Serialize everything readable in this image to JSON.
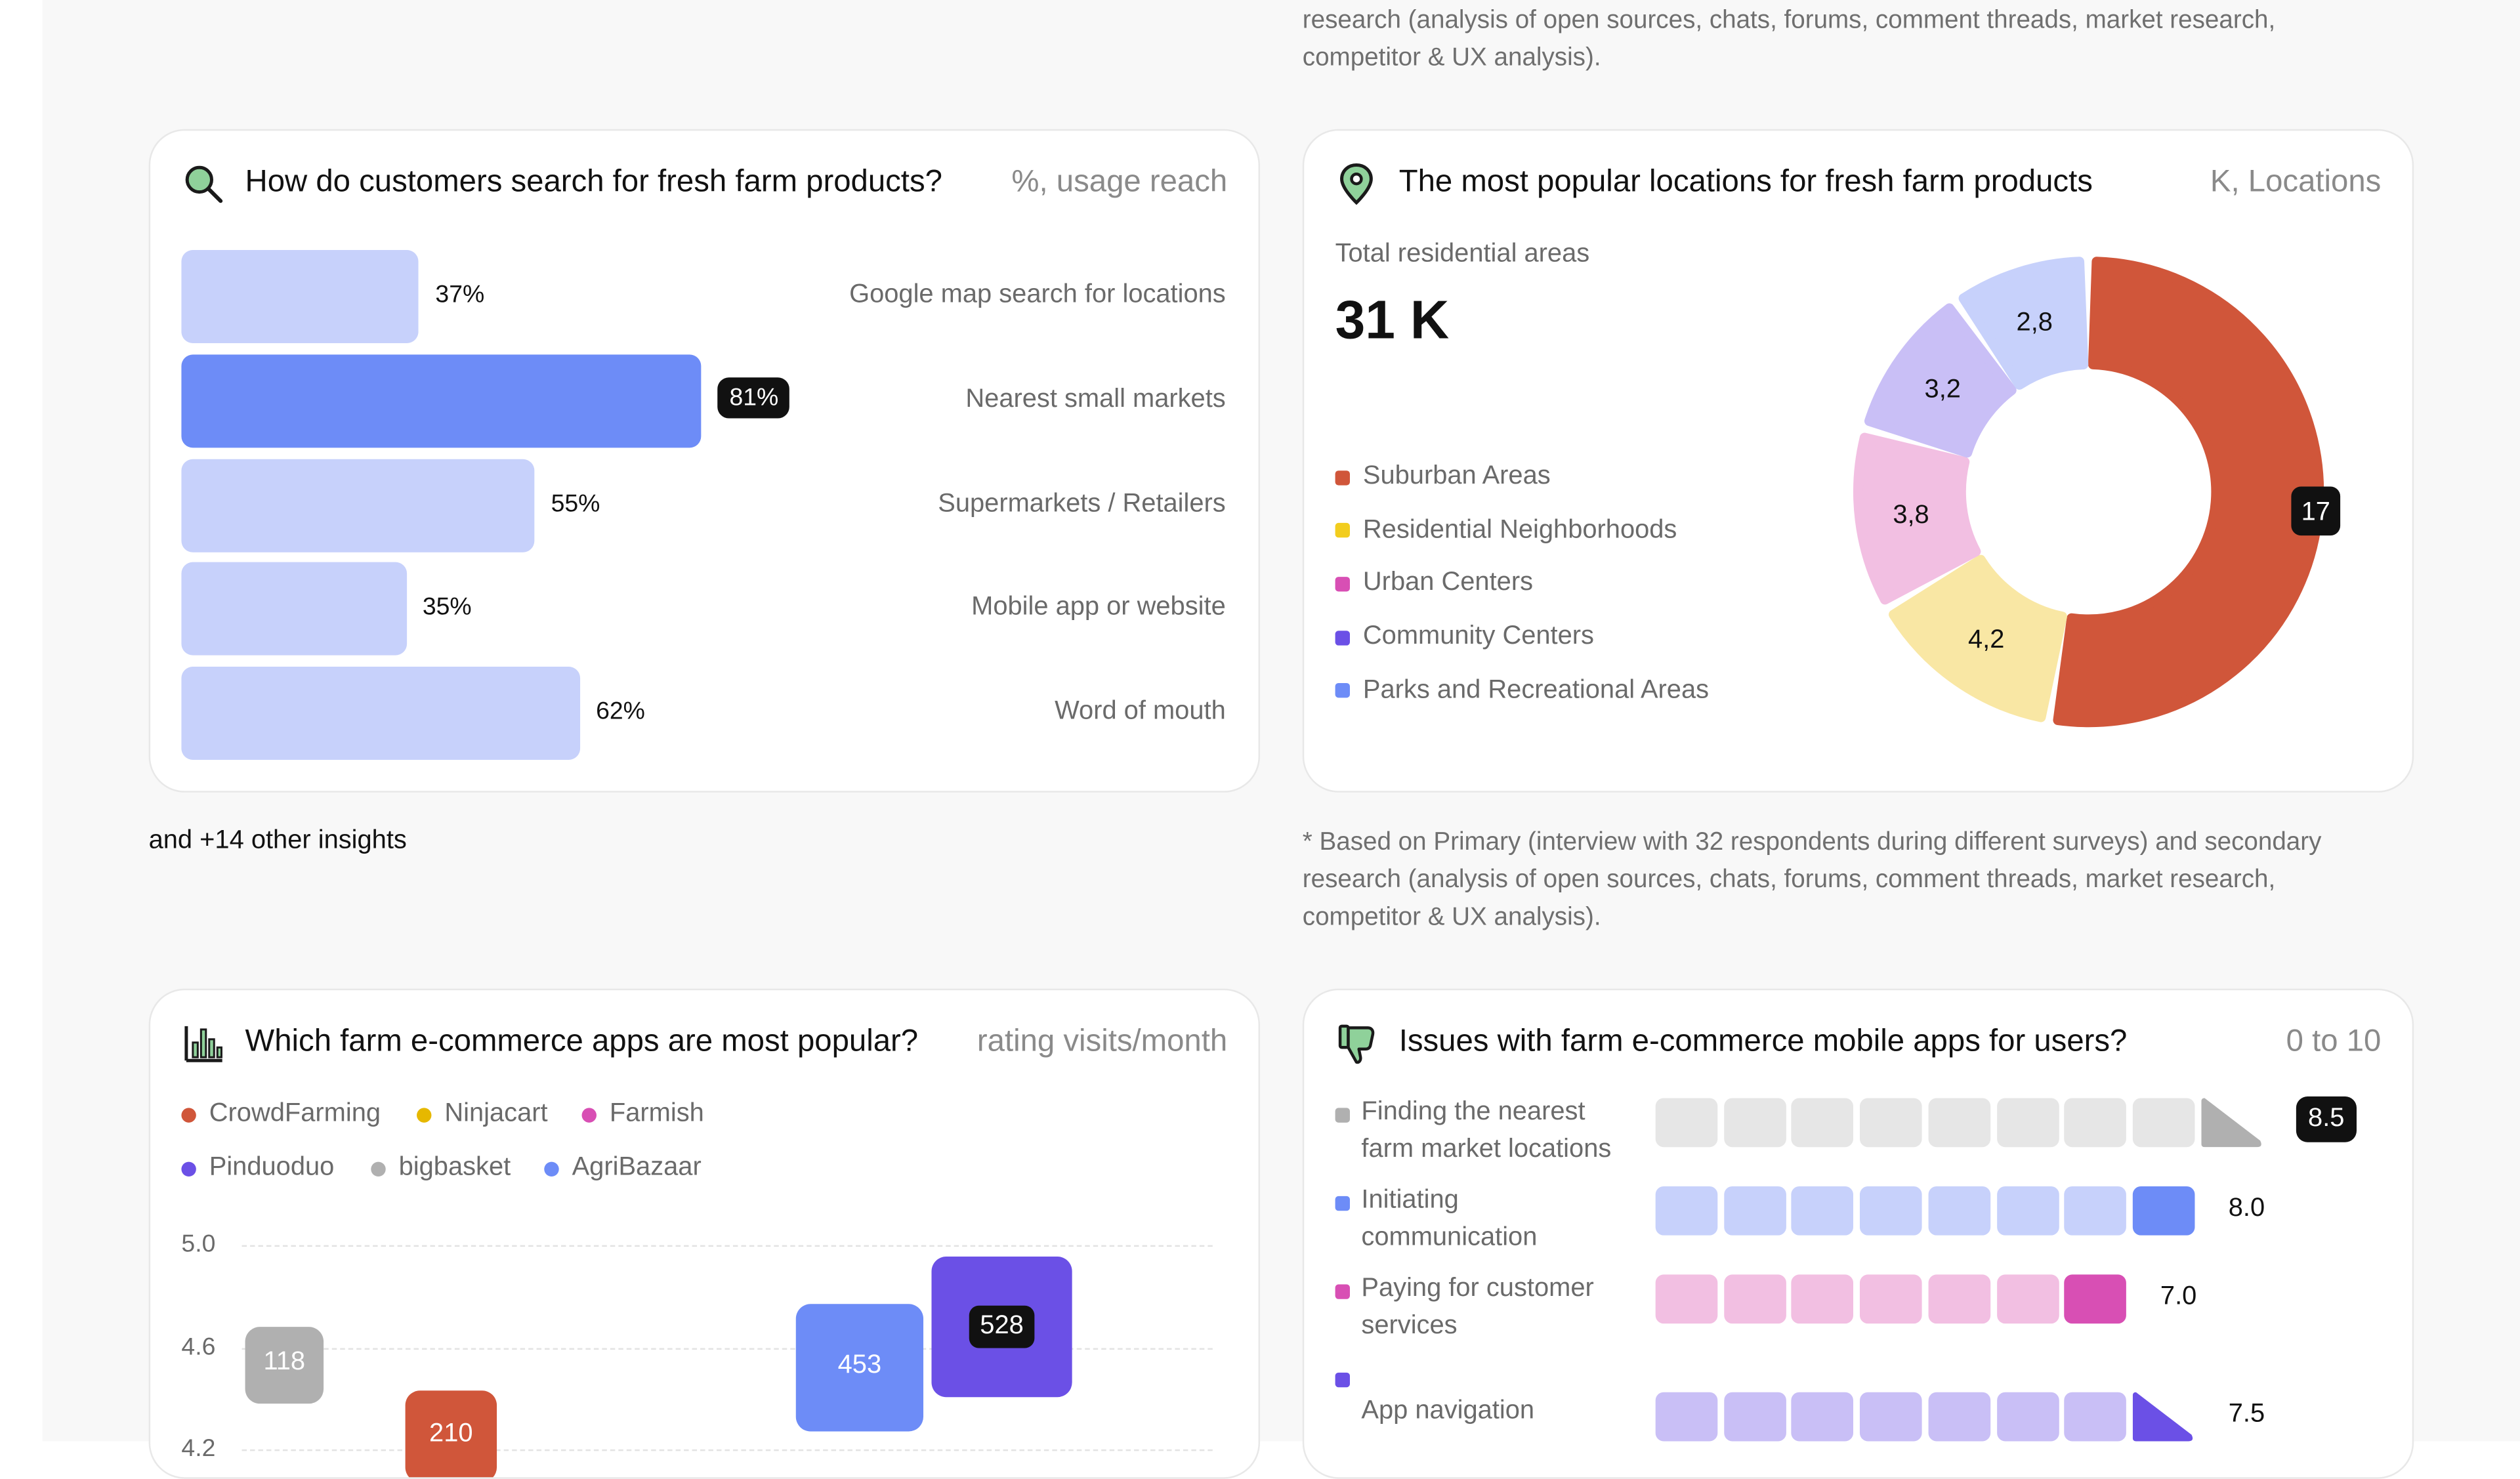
{
  "top_note": {
    "line1": "research (analysis of open sources, chats, forums, comment threads, market research,",
    "line2": "competitor & UX analysis)."
  },
  "search_card": {
    "title": "How do customers search for fresh farm products?",
    "unit": "%, usage reach",
    "highlight_color": "#6d8cf7",
    "base_color": "#c7d1fb"
  },
  "locations_card": {
    "title": "The most popular locations for fresh farm products",
    "unit": "K, Locations",
    "total_label": "Total residential areas",
    "total_value": "31 K"
  },
  "other_insights": "and +14 other insights",
  "bottom_note": {
    "line1": "* Based on Primary (interview with 32 respondents during different surveys) and secondary",
    "line2": "research (analysis of open sources, chats, forums, comment threads, market research,",
    "line3": "competitor & UX analysis)."
  },
  "apps_card": {
    "title": "Which farm e-commerce apps are most popular?",
    "unit": "rating visits/month"
  },
  "issues_card": {
    "title": "Issues with farm e-commerce mobile apps for users?",
    "unit": "0 to 10",
    "items": [
      {
        "line1": "Finding the nearest",
        "line2": "farm market locations",
        "score": "8.5",
        "value": 8.5,
        "color": "#b0b0b0",
        "light": "#e6e6e6",
        "badge": true
      },
      {
        "line1": "Initiating",
        "line2": "communication",
        "score": "8.0",
        "value": 8.0,
        "color": "#6d8cf7",
        "light": "#c7d1fb",
        "badge": false
      },
      {
        "line1": "Paying for customer",
        "line2": "services",
        "score": "7.0",
        "value": 7.0,
        "color": "#d84fb4",
        "light": "#f2bfe2",
        "badge": false
      },
      {
        "line1": "App navigation",
        "line2": "",
        "score": "7.5",
        "value": 7.5,
        "color": "#6b50e6",
        "light": "#c9bff6",
        "badge": false
      }
    ]
  },
  "chart_data": [
    {
      "type": "bar",
      "orientation": "horizontal",
      "title": "How do customers search for fresh farm products?",
      "unit": "%, usage reach",
      "categories": [
        "Google map search for locations",
        "Nearest small markets",
        "Supermarkets / Retailers",
        "Mobile app or website",
        "Word of mouth"
      ],
      "values": [
        37,
        81,
        55,
        35,
        62
      ],
      "labels": [
        "37%",
        "81%",
        "55%",
        "35%",
        "62%"
      ],
      "highlight_index": 1,
      "xlim": [
        0,
        100
      ]
    },
    {
      "type": "pie",
      "style": "donut",
      "title": "The most popular locations for fresh farm products",
      "unit": "K, Locations",
      "categories": [
        "Suburban Areas",
        "Residential Neighborhoods",
        "Urban Centers",
        "Community Centers",
        "Parks and Recreational Areas"
      ],
      "values": [
        17,
        4.2,
        3.8,
        3.2,
        2.8
      ],
      "labels": [
        "17",
        "4,2",
        "3,8",
        "3,2",
        "2,8"
      ],
      "legend_colors": [
        "#d0563a",
        "#f2cd1e",
        "#d84fb4",
        "#6b50e6",
        "#6d8cf7"
      ],
      "slice_colors": [
        "#d0563a",
        "#f9e7a4",
        "#f2bfe2",
        "#c9bff6",
        "#c7d1fb"
      ],
      "total": "31 K"
    },
    {
      "type": "scatter",
      "style": "bubble",
      "title": "Which farm e-commerce apps are most popular?",
      "xlabel": "",
      "ylabel": "rating",
      "ylim": [
        4.0,
        5.0
      ],
      "yticks": [
        "5.0",
        "4.6",
        "4.2"
      ],
      "ytick_values": [
        5.0,
        4.6,
        4.2
      ],
      "legend": [
        "CrowdFarming",
        "Ninjacart",
        "Farmish",
        "Pinduoduo",
        "bigbasket",
        "AgriBazaar"
      ],
      "legend_colors": [
        "#d0563a",
        "#e6b800",
        "#d84fb4",
        "#6b50e6",
        "#b0b0b0",
        "#6d8cf7"
      ],
      "points": [
        {
          "series": "bigbasket",
          "rating": 4.53,
          "visits": 118,
          "label": "118",
          "color": "#b0b0b0"
        },
        {
          "series": "CrowdFarming",
          "rating": 4.25,
          "visits": 210,
          "label": "210",
          "color": "#d0563a"
        },
        {
          "series": "AgriBazaar",
          "rating": 4.52,
          "visits": 453,
          "label": "453",
          "color": "#6d8cf7"
        },
        {
          "series": "Pinduoduo",
          "rating": 4.68,
          "visits": 528,
          "label": "528",
          "color": "#6b50e6"
        }
      ]
    }
  ]
}
